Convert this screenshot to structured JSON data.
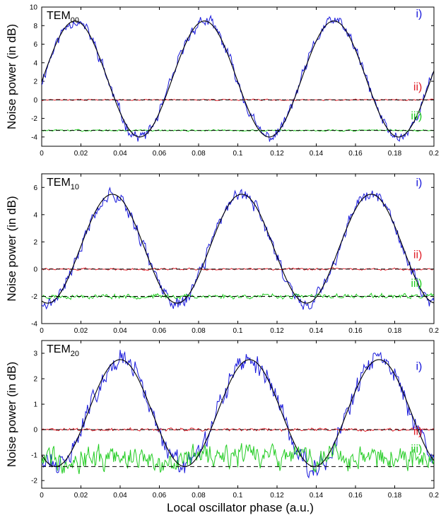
{
  "figure": {
    "xlabel": "Local oscillator phase (a.u.)"
  },
  "chart_data": [
    {
      "type": "line",
      "title_main": "TEM",
      "title_sub": "00",
      "ylabel": "Noise power (in dB)",
      "xlim": [
        0,
        0.2
      ],
      "ylim": [
        -5,
        10
      ],
      "x_ticks": [
        0,
        0.02,
        0.04,
        0.06,
        0.08,
        0.1,
        0.12,
        0.14,
        0.16,
        0.18,
        0.2
      ],
      "x_tick_labels": [
        "0",
        "0.02",
        "0.04",
        "0.06",
        "0.08",
        "0.1",
        "0.12",
        "0.14",
        "0.16",
        "0.18",
        "0.2"
      ],
      "y_ticks": [
        -4,
        -2,
        0,
        2,
        4,
        6,
        8,
        10
      ],
      "y_tick_labels": [
        "-4",
        "-2",
        "0",
        "2",
        "4",
        "6",
        "8",
        "10"
      ],
      "series": [
        {
          "name": "i)",
          "color": "#1a1adb",
          "kind": "noisy",
          "fit_max": 8.5,
          "fit_min": -4.0,
          "period": 0.066,
          "phase_peak": 0.017,
          "noise": 0.45,
          "seed": 11
        },
        {
          "name": "ii)",
          "color": "#e0202a",
          "kind": "flat",
          "level": 0.0,
          "noise": 0.05,
          "seed": 12
        },
        {
          "name": "iii)",
          "color": "#22cc22",
          "kind": "flat",
          "level": -3.3,
          "noise": 0.06,
          "seed": 13
        }
      ],
      "fit": {
        "color": "#000000",
        "fit_max": 8.5,
        "fit_min": -4.0,
        "period": 0.066,
        "phase_peak": 0.017
      },
      "refs": [
        {
          "level": 0.0
        },
        {
          "level": -3.3
        }
      ],
      "labels": [
        {
          "text": "i)",
          "color": "#1a1adb",
          "x": 0.194,
          "y": 8.9
        },
        {
          "text": "ii)",
          "color": "#e0202a",
          "x": 0.194,
          "y": 1.0
        },
        {
          "text": "iii)",
          "color": "#22cc22",
          "x": 0.194,
          "y": -2.1
        }
      ]
    },
    {
      "type": "line",
      "title_main": "TEM",
      "title_sub": "10",
      "ylabel": "Noise power (in dB)",
      "xlim": [
        0,
        0.2
      ],
      "ylim": [
        -4,
        7
      ],
      "x_ticks": [
        0,
        0.02,
        0.04,
        0.06,
        0.08,
        0.1,
        0.12,
        0.14,
        0.16,
        0.18,
        0.2
      ],
      "x_tick_labels": [
        "0",
        "0.02",
        "0.04",
        "0.06",
        "0.08",
        "0.1",
        "0.12",
        "0.14",
        "0.16",
        "0.18",
        "0.2"
      ],
      "y_ticks": [
        -4,
        -2,
        0,
        2,
        4,
        6
      ],
      "y_tick_labels": [
        "-4",
        "-2",
        "0",
        "2",
        "4",
        "6"
      ],
      "series": [
        {
          "name": "i)",
          "color": "#1a1adb",
          "kind": "noisy",
          "fit_max": 5.5,
          "fit_min": -2.5,
          "period": 0.066,
          "phase_peak": 0.036,
          "noise": 0.35,
          "seed": 21
        },
        {
          "name": "ii)",
          "color": "#e0202a",
          "kind": "flat",
          "level": 0.0,
          "noise": 0.05,
          "seed": 22
        },
        {
          "name": "iii)",
          "color": "#22cc22",
          "kind": "flat",
          "level": -2.0,
          "noise": 0.12,
          "seed": 23
        }
      ],
      "fit": {
        "color": "#000000",
        "fit_max": 5.5,
        "fit_min": -2.5,
        "period": 0.066,
        "phase_peak": 0.036
      },
      "refs": [
        {
          "level": 0.0
        },
        {
          "level": -2.0
        }
      ],
      "labels": [
        {
          "text": "i)",
          "color": "#1a1adb",
          "x": 0.194,
          "y": 6.1
        },
        {
          "text": "ii)",
          "color": "#e0202a",
          "x": 0.194,
          "y": 0.8
        },
        {
          "text": "iii)",
          "color": "#22cc22",
          "x": 0.194,
          "y": -1.3
        }
      ]
    },
    {
      "type": "line",
      "title_main": "TEM",
      "title_sub": "20",
      "ylabel": "Noise power (in dB)",
      "xlim": [
        0,
        0.2
      ],
      "ylim": [
        -2.3,
        3.5
      ],
      "x_ticks": [
        0,
        0.02,
        0.04,
        0.06,
        0.08,
        0.1,
        0.12,
        0.14,
        0.16,
        0.18,
        0.2
      ],
      "x_tick_labels": [
        "0",
        "0.02",
        "0.04",
        "0.06",
        "0.08",
        "0.1",
        "0.12",
        "0.14",
        "0.16",
        "0.18",
        "0.2"
      ],
      "y_ticks": [
        -2,
        -1,
        0,
        1,
        2,
        3
      ],
      "y_tick_labels": [
        "-2",
        "-1",
        "0",
        "1",
        "2",
        "3"
      ],
      "series": [
        {
          "name": "i)",
          "color": "#1a1adb",
          "kind": "noisy",
          "fit_max": 2.75,
          "fit_min": -1.45,
          "period": 0.066,
          "phase_peak": 0.04,
          "noise": 0.3,
          "seed": 31
        },
        {
          "name": "ii)",
          "color": "#e0202a",
          "kind": "flat",
          "level": 0.0,
          "noise": 0.04,
          "seed": 32
        },
        {
          "name": "iii)",
          "color": "#22cc22",
          "kind": "flat",
          "level": -1.1,
          "noise": 0.35,
          "seed": 33
        }
      ],
      "fit": {
        "color": "#000000",
        "fit_max": 2.75,
        "fit_min": -1.45,
        "period": 0.066,
        "phase_peak": 0.04
      },
      "refs": [
        {
          "level": 0.0
        },
        {
          "level": -1.45
        }
      ],
      "labels": [
        {
          "text": "i)",
          "color": "#1a1adb",
          "x": 0.194,
          "y": 2.35
        },
        {
          "text": "ii)",
          "color": "#e0202a",
          "x": 0.194,
          "y": -0.2
        },
        {
          "text": "iii)",
          "color": "#22cc22",
          "x": 0.194,
          "y": -0.9
        }
      ]
    }
  ]
}
